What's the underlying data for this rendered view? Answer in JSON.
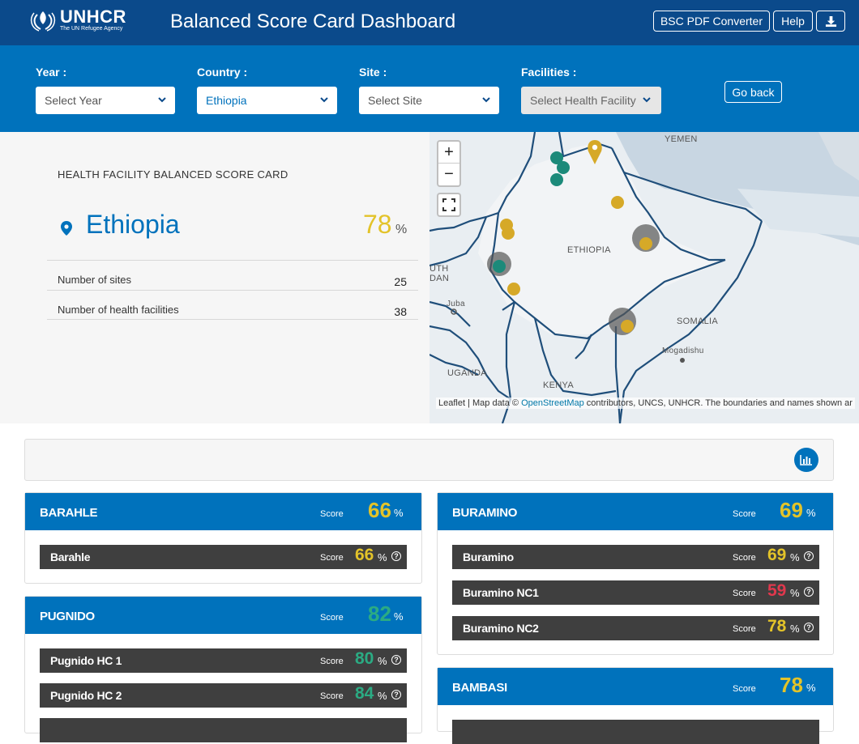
{
  "header": {
    "logo_name": "UNHCR",
    "logo_sub": "The UN Refugee Agency",
    "title": "Balanced Score Card Dashboard",
    "buttons": {
      "pdf": "BSC PDF Converter",
      "help": "Help"
    },
    "download_icon": "download-icon"
  },
  "filters": {
    "year": {
      "label": "Year :",
      "value": "Select Year"
    },
    "country": {
      "label": "Country :",
      "value": "Ethiopia"
    },
    "site": {
      "label": "Site :",
      "value": "Select Site"
    },
    "facilities": {
      "label": "Facilities :",
      "value": "Select Health Facility"
    },
    "go_back": "Go back"
  },
  "summary": {
    "title": "HEALTH FACILITY BALANCED SCORE CARD",
    "country": "Ethiopia",
    "score": "78",
    "pct": "%",
    "rows": [
      {
        "label": "Number of sites",
        "value": "25"
      },
      {
        "label": "Number of health facilities",
        "value": "38"
      }
    ]
  },
  "map": {
    "zoom_in": "+",
    "zoom_out": "−",
    "labels": {
      "yemen": "YEMEN",
      "ethiopia": "ETHIOPIA",
      "somalia": "SOMALIA",
      "south_sudan_1": "UTH",
      "south_sudan_2": "DAN",
      "juba": "Juba",
      "uganda": "UGANDA",
      "kenya": "KENYA",
      "mogadishu": "Mogadishu"
    },
    "attribution_pre": "Leaflet | Map data © ",
    "attribution_link": "OpenStreetMap",
    "attribution_post": " contributors, UNCS, UNHCR. The boundaries and names shown ar"
  },
  "score_label": "Score",
  "pct": "%",
  "colors": {
    "high": "#2bab83",
    "mid": "#e3c329",
    "low": "#e0384d",
    "brand": "#0072bc",
    "dark_brand": "#0b4a8b"
  },
  "sites": [
    {
      "name": "BARAHLE",
      "score": "66",
      "facilities": [
        {
          "name": "Barahle",
          "score": "66"
        }
      ]
    },
    {
      "name": "BURAMINO",
      "score": "69",
      "facilities": [
        {
          "name": "Buramino",
          "score": "69"
        },
        {
          "name": "Buramino NC1",
          "score": "59"
        },
        {
          "name": "Buramino NC2",
          "score": "78"
        }
      ]
    },
    {
      "name": "PUGNIDO",
      "score": "82",
      "facilities": [
        {
          "name": "Pugnido HC 1",
          "score": "80"
        },
        {
          "name": "Pugnido HC 2",
          "score": "84"
        }
      ]
    },
    {
      "name": "BAMBASI",
      "score": "78",
      "facilities": []
    }
  ]
}
